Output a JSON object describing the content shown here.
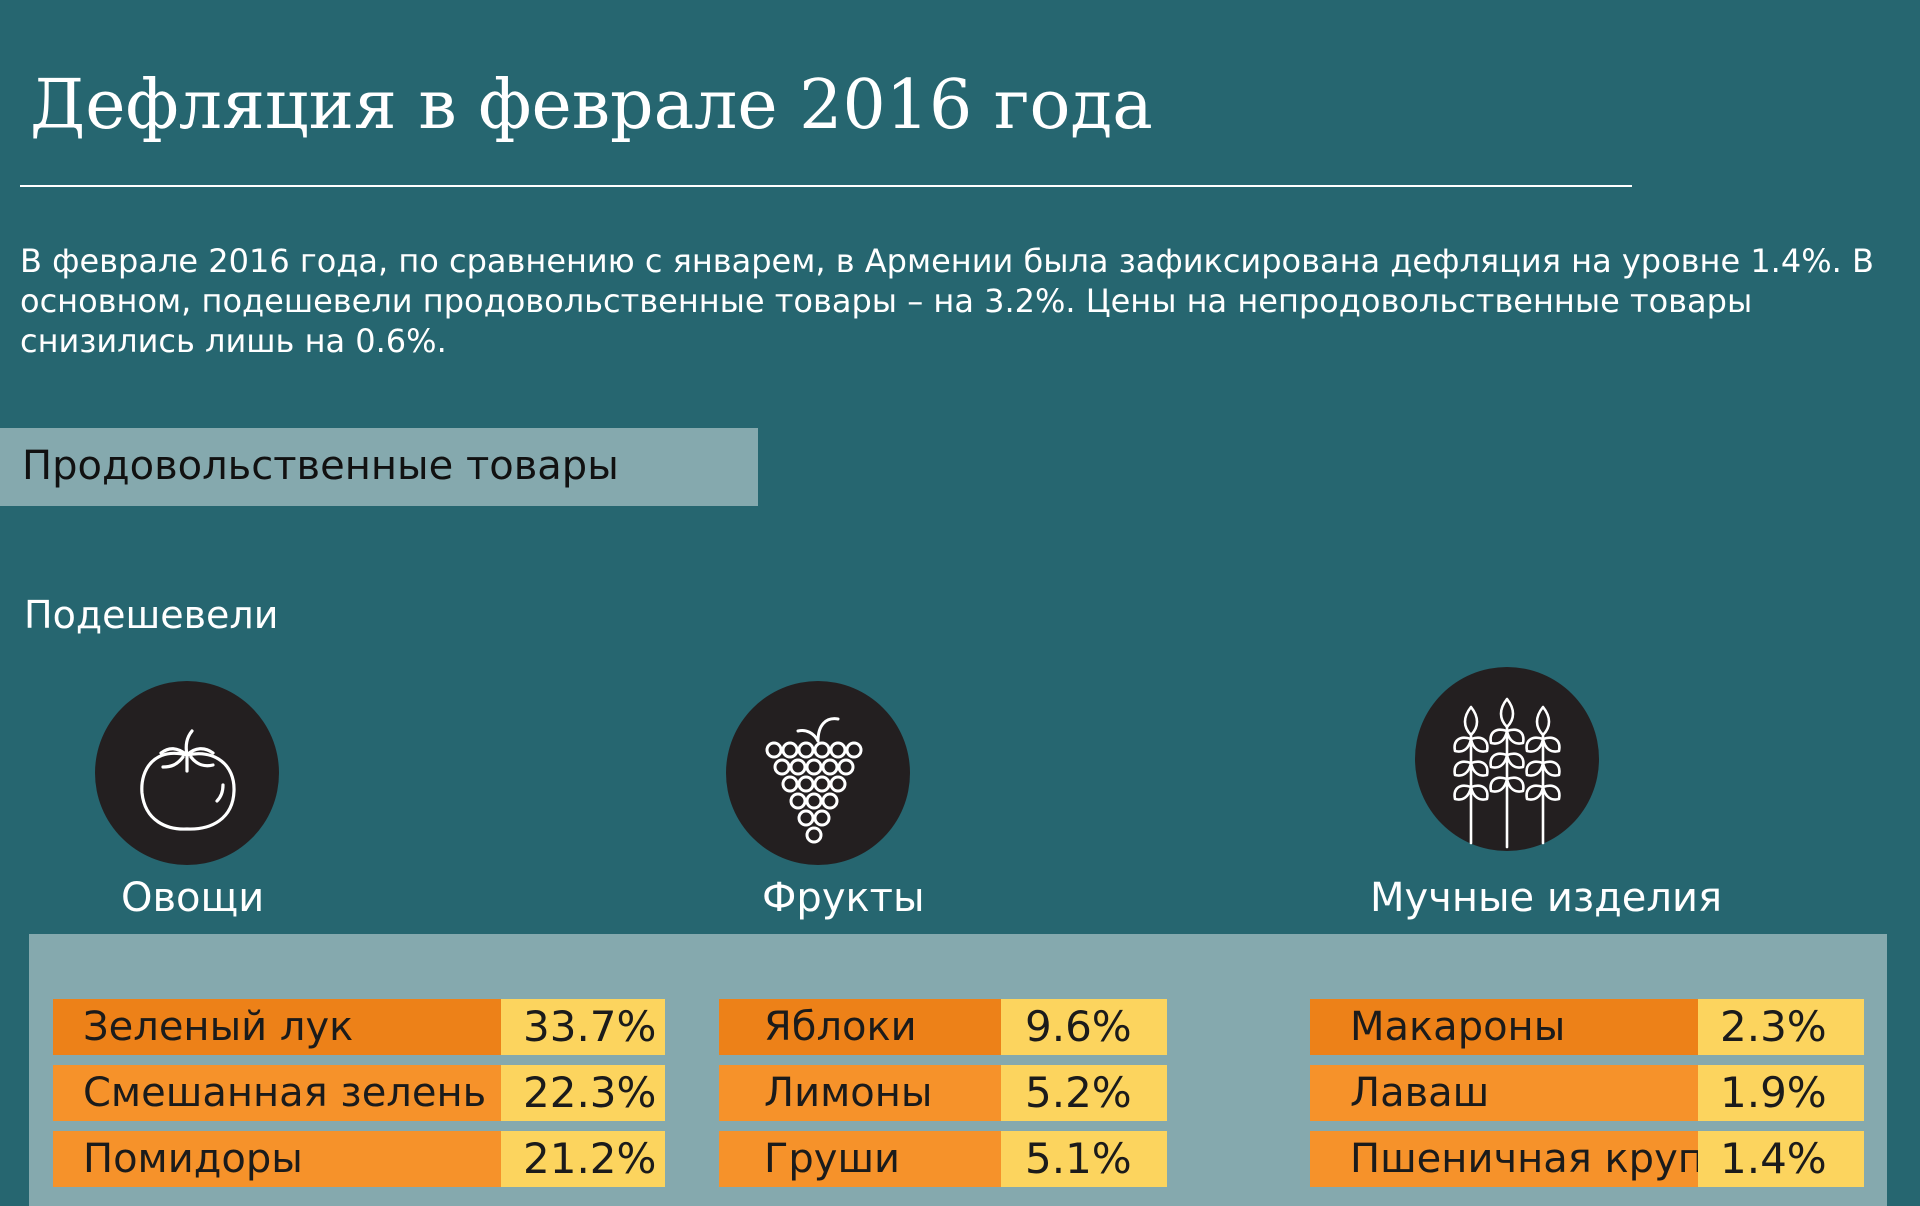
{
  "header": {
    "title": "Дефляция в феврале 2016 года",
    "intro": "В феврале 2016 года, по сравнению с январем, в Армении была зафиксирована дефляция на уровне 1.4%. В основном, подешевели продовольственные товары – на 3.2%. Цены на непродовольственные товары снизились лишь на 0.6%."
  },
  "section": {
    "title": "Продовольственные товары",
    "subtitle": "Подешевели"
  },
  "categories": [
    {
      "label": "Овощи",
      "icon": "tomato-icon",
      "rows": [
        {
          "name": "Зеленый лук",
          "value": "33.7%"
        },
        {
          "name": "Смешанная зелень",
          "value": "22.3%"
        },
        {
          "name": "Помидоры",
          "value": "21.2%"
        }
      ]
    },
    {
      "label": "Фрукты",
      "icon": "grapes-icon",
      "rows": [
        {
          "name": "Яблоки",
          "value": "9.6%"
        },
        {
          "name": "Лимоны",
          "value": "5.2%"
        },
        {
          "name": "Груши",
          "value": "5.1%"
        }
      ]
    },
    {
      "label": "Мучные изделия",
      "icon": "wheat-icon",
      "rows": [
        {
          "name": "Макароны",
          "value": "2.3%"
        },
        {
          "name": "Лаваш",
          "value": "1.9%"
        },
        {
          "name": "Пшеничная крупа",
          "value": "1.4%"
        }
      ]
    }
  ],
  "colors": {
    "background": "#266670",
    "panel": "#85a9ae",
    "name_cell": "#ed8118",
    "value_cell": "#fcd45e",
    "icon_circle": "#231f20"
  }
}
